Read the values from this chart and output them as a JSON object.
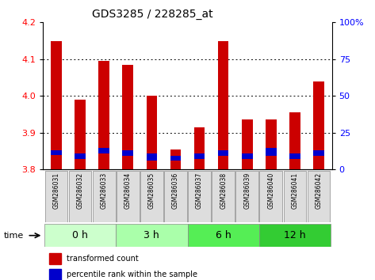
{
  "title": "GDS3285 / 228285_at",
  "samples": [
    "GSM286031",
    "GSM286032",
    "GSM286033",
    "GSM286034",
    "GSM286035",
    "GSM286036",
    "GSM286037",
    "GSM286038",
    "GSM286039",
    "GSM286040",
    "GSM286041",
    "GSM286042"
  ],
  "red_tops": [
    4.15,
    3.99,
    4.095,
    4.085,
    4.0,
    3.855,
    3.915,
    4.15,
    3.935,
    3.935,
    3.955,
    4.04
  ],
  "blue_bottoms": [
    3.84,
    3.828,
    3.843,
    3.838,
    3.823,
    3.823,
    3.828,
    3.838,
    3.828,
    3.838,
    3.828,
    3.838
  ],
  "blue_tops": [
    3.853,
    3.843,
    3.858,
    3.853,
    3.843,
    3.838,
    3.843,
    3.853,
    3.843,
    3.858,
    3.843,
    3.853
  ],
  "bar_base": 3.8,
  "ylim": [
    3.8,
    4.2
  ],
  "yticks_left": [
    3.8,
    3.9,
    4.0,
    4.1,
    4.2
  ],
  "yticks_right": [
    0,
    25,
    50,
    75,
    100
  ],
  "groups": [
    {
      "label": "0 h",
      "start": 0,
      "end": 3,
      "color": "#ccffcc"
    },
    {
      "label": "3 h",
      "start": 3,
      "end": 6,
      "color": "#aaffaa"
    },
    {
      "label": "6 h",
      "start": 6,
      "end": 9,
      "color": "#55ee55"
    },
    {
      "label": "12 h",
      "start": 9,
      "end": 12,
      "color": "#33cc33"
    }
  ],
  "bar_width": 0.45,
  "red_color": "#cc0000",
  "blue_color": "#0000cc",
  "legend_red": "transformed count",
  "legend_blue": "percentile rank within the sample",
  "time_label": "time",
  "title_fontsize": 10,
  "axis_fontsize": 8,
  "group_fontsize": 9,
  "sample_fontsize": 5.5
}
